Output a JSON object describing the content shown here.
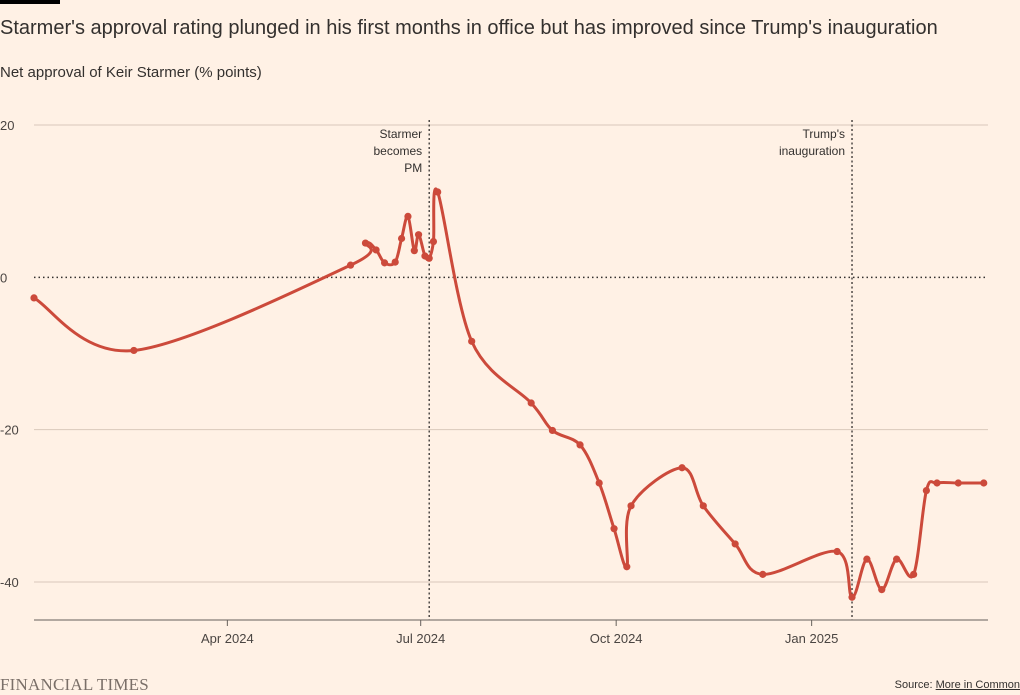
{
  "header": {
    "title": "Starmer's approval rating plunged in his first months in office but has improved since Trump's inauguration",
    "subtitle": "Net approval of Keir Starmer (% points)"
  },
  "footer": {
    "brand": "FINANCIAL TIMES",
    "source_prefix": "Source: ",
    "source_link": "More in Common"
  },
  "colors": {
    "background": "#fff1e5",
    "line": "#cc4a3b",
    "grid": "#d9c8bb",
    "text": "#33302e"
  },
  "chart_data": {
    "type": "line",
    "title": "Starmer's approval rating plunged in his first months in office but has improved since Trump's inauguration",
    "ylabel": "Net approval of Keir Starmer (% points)",
    "xlim": [
      "2024-01-01",
      "2025-03-25"
    ],
    "ylim": [
      -45,
      20
    ],
    "y_ticks": [
      {
        "value": 20,
        "label": "20"
      },
      {
        "value": 0,
        "label": "0"
      },
      {
        "value": -20,
        "label": "-20"
      },
      {
        "value": -40,
        "label": "-40"
      }
    ],
    "x_ticks": [
      {
        "date": "2024-04-01",
        "label": "Apr 2024"
      },
      {
        "date": "2024-07-01",
        "label": "Jul 2024"
      },
      {
        "date": "2024-10-01",
        "label": "Oct 2024"
      },
      {
        "date": "2025-01-01",
        "label": "Jan 2025"
      }
    ],
    "grid": true,
    "zero_line": "dotted",
    "annotations": [
      {
        "date": "2024-07-05",
        "lines": [
          "Starmer",
          "becomes",
          "PM"
        ]
      },
      {
        "date": "2025-01-20",
        "lines": [
          "Trump's",
          "inauguration"
        ]
      }
    ],
    "series": [
      {
        "x": [
          "2024-01-01",
          "2024-02-17",
          "2024-05-29",
          "2024-06-05",
          "2024-06-10",
          "2024-06-14",
          "2024-06-19",
          "2024-06-22",
          "2024-06-25",
          "2024-06-28",
          "2024-06-30",
          "2024-07-03",
          "2024-07-05",
          "2024-07-07",
          "2024-07-09",
          "2024-07-25",
          "2024-08-22",
          "2024-09-01",
          "2024-09-14",
          "2024-09-23",
          "2024-09-30",
          "2024-10-06",
          "2024-10-08",
          "2024-11-01",
          "2024-11-11",
          "2024-11-26",
          "2024-12-09",
          "2025-01-13",
          "2025-01-20",
          "2025-01-27",
          "2025-02-03",
          "2025-02-10",
          "2025-02-18",
          "2025-02-24",
          "2025-03-01",
          "2025-03-11",
          "2025-03-23"
        ],
        "values": [
          -2.7,
          -9.6,
          1.6,
          4.5,
          3.6,
          1.9,
          2.0,
          5.1,
          8.0,
          3.5,
          5.6,
          2.8,
          2.5,
          4.7,
          11.2,
          -8.4,
          -16.5,
          -20.1,
          -22.0,
          -27.0,
          -33.0,
          -38.0,
          -30.0,
          -25.0,
          -30.0,
          -35.0,
          -39.0,
          -36.0,
          -42.0,
          -37.0,
          -41.0,
          -37.0,
          -39.0,
          -28.0,
          -27.0,
          -27.0,
          -27.0
        ]
      }
    ]
  }
}
